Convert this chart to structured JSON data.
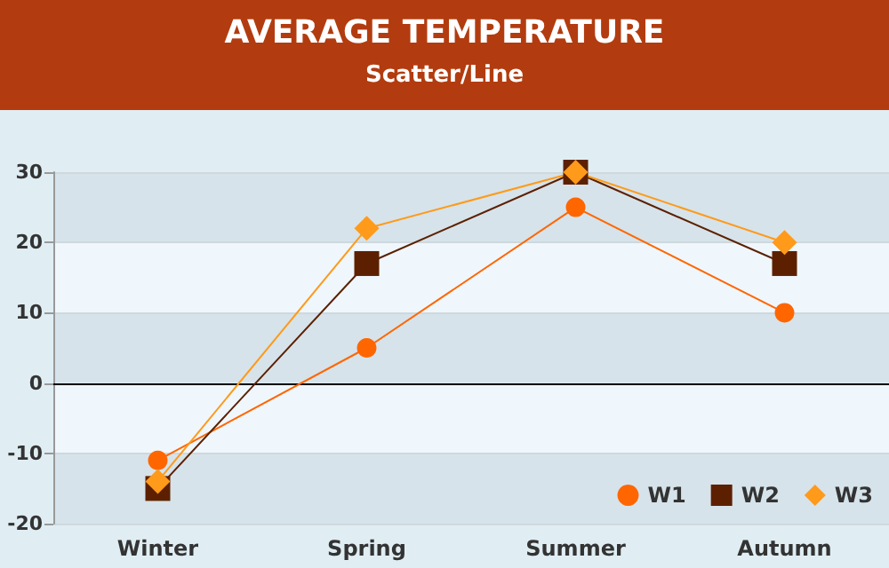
{
  "chart_data": {
    "type": "line",
    "title": "AVERAGE TEMPERATURE",
    "subtitle": "Scatter/Line",
    "categories": [
      "Winter",
      "Spring",
      "Summer",
      "Autumn"
    ],
    "series": [
      {
        "name": "W1",
        "color": "#ff6600",
        "marker": "circle",
        "values": [
          -11,
          5,
          25,
          10
        ]
      },
      {
        "name": "W2",
        "color": "#5c2000",
        "marker": "square",
        "values": [
          -15,
          17,
          30,
          17
        ]
      },
      {
        "name": "W3",
        "color": "#ff9a1a",
        "marker": "diamond",
        "values": [
          -14,
          22,
          30,
          20
        ]
      }
    ],
    "ylim": [
      -20,
      30
    ],
    "yticks": [
      -20,
      -10,
      0,
      10,
      20,
      30
    ],
    "grid": "y",
    "legend": "bottom right",
    "line_style": "solid"
  }
}
